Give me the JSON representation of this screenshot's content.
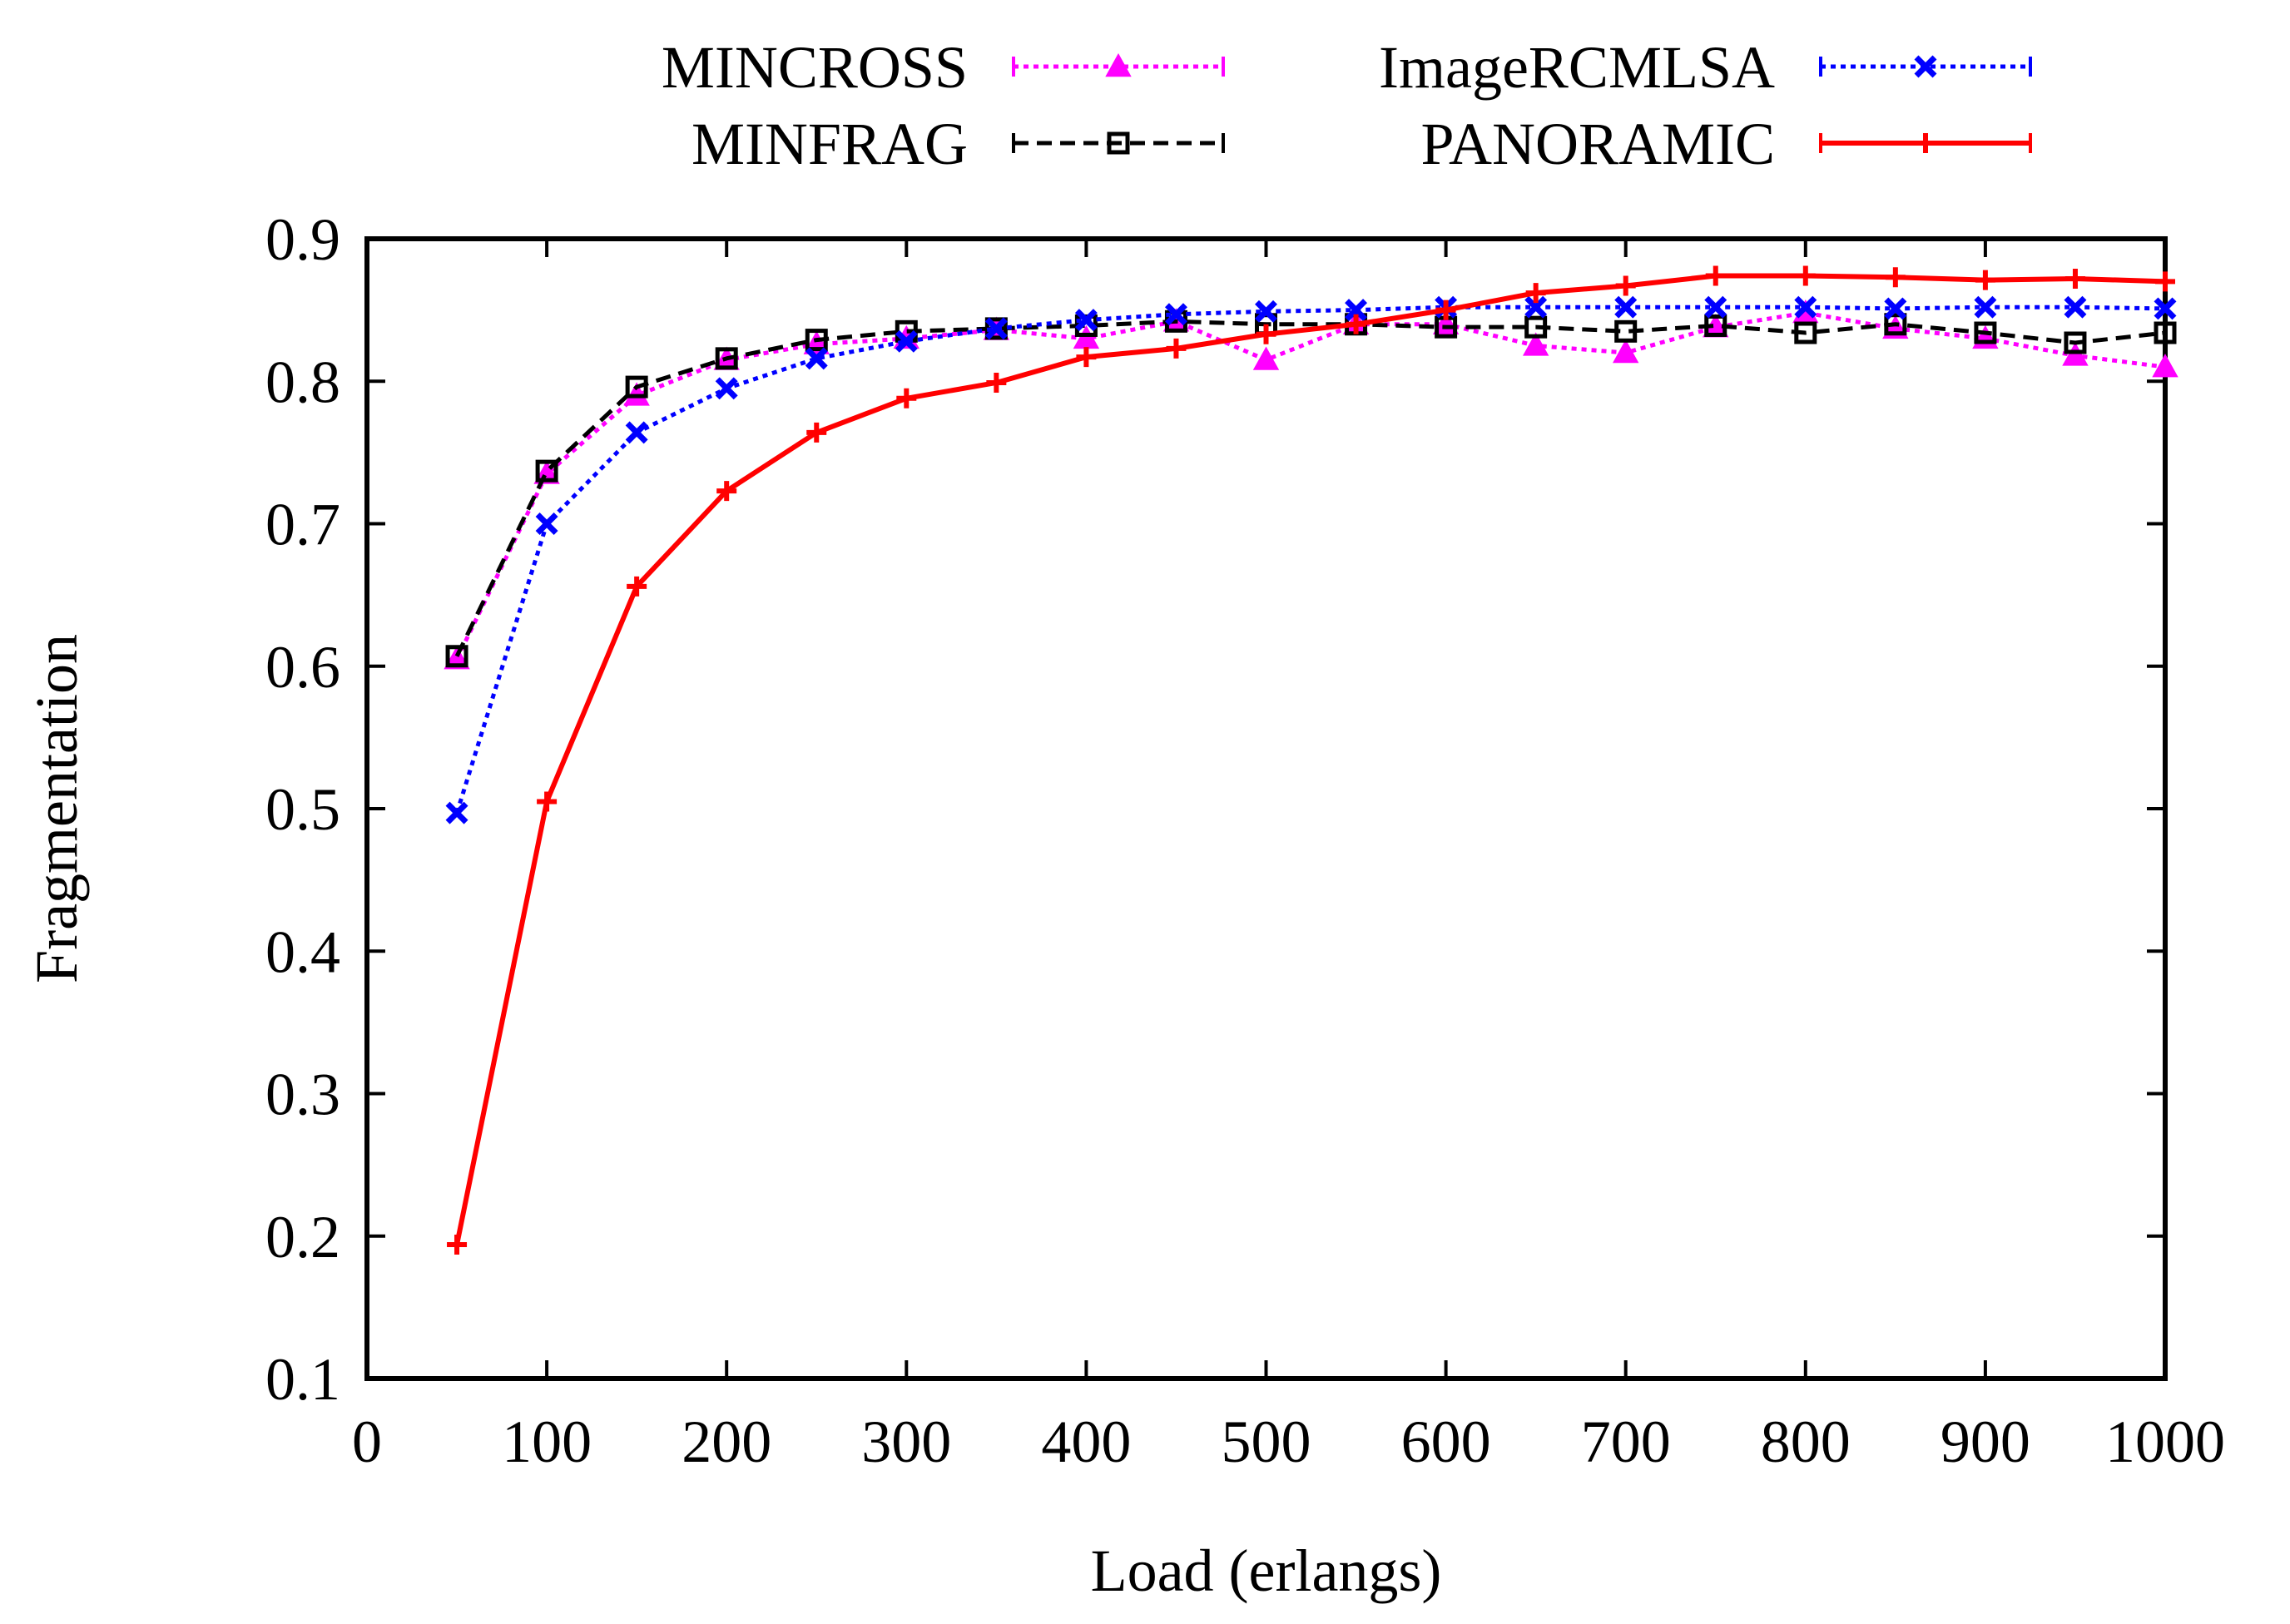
{
  "chart_data": {
    "type": "line",
    "title": "",
    "xlabel": "Load (erlangs)",
    "ylabel": "Fragmentation",
    "xlim": [
      0,
      1000
    ],
    "ylim": [
      0.1,
      0.9
    ],
    "xticks": [
      "0",
      "100",
      "200",
      "300",
      "400",
      "500",
      "600",
      "700",
      "800",
      "900",
      "1000"
    ],
    "yticks": [
      "0.1",
      "0.2",
      "0.3",
      "0.4",
      "0.5",
      "0.6",
      "0.7",
      "0.8",
      "0.9"
    ],
    "legend_position": "top-outside",
    "grid": false,
    "x": [
      50,
      100,
      150,
      200,
      250,
      300,
      350,
      400,
      450,
      500,
      550,
      600,
      650,
      700,
      750,
      800,
      850,
      900,
      950,
      1000
    ],
    "series": [
      {
        "name": "MINCROSS",
        "color": "#ff00ff",
        "dash": "dotted",
        "marker": "triangle",
        "values": [
          0.605,
          0.735,
          0.79,
          0.815,
          0.826,
          0.83,
          0.836,
          0.83,
          0.842,
          0.815,
          0.84,
          0.84,
          0.825,
          0.82,
          0.838,
          0.848,
          0.837,
          0.83,
          0.818,
          0.81
        ]
      },
      {
        "name": "MINFRAG",
        "color": "#000000",
        "dash": "dashed",
        "marker": "square",
        "values": [
          0.607,
          0.737,
          0.796,
          0.816,
          0.829,
          0.835,
          0.837,
          0.839,
          0.842,
          0.84,
          0.84,
          0.838,
          0.838,
          0.835,
          0.839,
          0.834,
          0.84,
          0.834,
          0.827,
          0.834
        ]
      },
      {
        "name": "ImageRCMLSA",
        "color": "#0000ff",
        "dash": "dotted",
        "marker": "x",
        "values": [
          0.497,
          0.7,
          0.764,
          0.795,
          0.816,
          0.828,
          0.837,
          0.843,
          0.847,
          0.849,
          0.85,
          0.852,
          0.852,
          0.852,
          0.852,
          0.852,
          0.851,
          0.852,
          0.852,
          0.851
        ]
      },
      {
        "name": "PANORAMIC",
        "color": "#ff0000",
        "dash": "solid",
        "marker": "plus",
        "values": [
          0.194,
          0.505,
          0.656,
          0.723,
          0.764,
          0.788,
          0.799,
          0.817,
          0.823,
          0.833,
          0.84,
          0.85,
          0.862,
          0.867,
          0.874,
          0.874,
          0.873,
          0.871,
          0.872,
          0.87
        ]
      }
    ]
  }
}
